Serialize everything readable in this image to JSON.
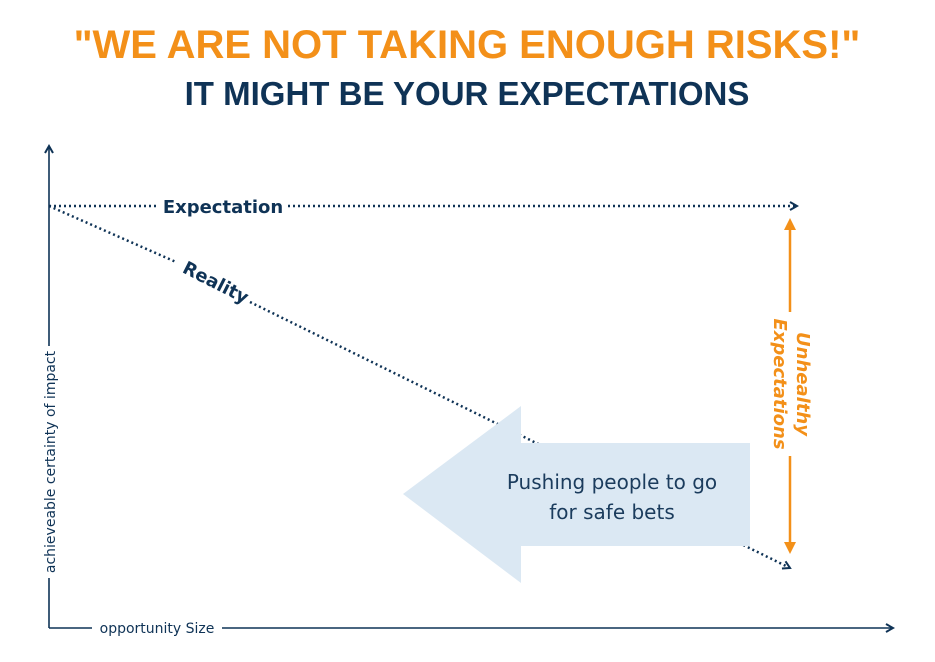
{
  "title": "\"WE ARE NOT TAKING ENOUGH RISKS!\"",
  "subtitle": "IT MIGHT BE YOUR EXPECTATIONS",
  "diagram": {
    "expectation_label": "Expectation",
    "reality_label": "Reality",
    "y_axis_label": "achieveable certainty of impact",
    "x_axis_label": "opportunity Size",
    "gap_label_line1": "Unhealthy",
    "gap_label_line2": "Expectations",
    "arrow_text_line1": "Pushing people to go",
    "arrow_text_line2": "for safe bets"
  },
  "colors": {
    "navy": "#0f3356",
    "orange": "#f39019",
    "arrow_fill": "#dbe8f3"
  }
}
